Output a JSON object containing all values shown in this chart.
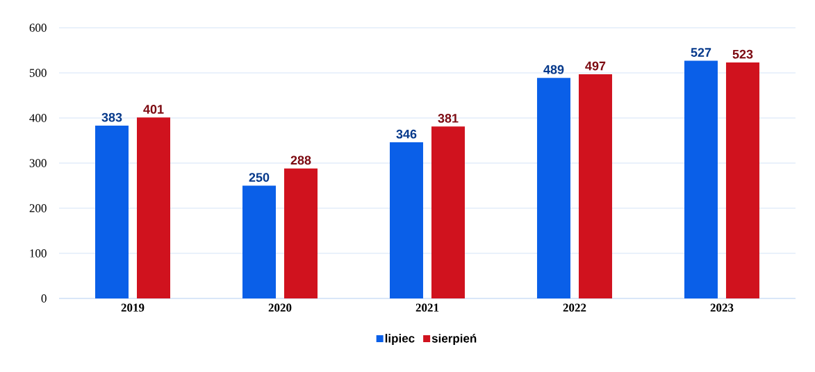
{
  "chart_data": {
    "type": "bar",
    "categories": [
      "2019",
      "2020",
      "2021",
      "2022",
      "2023"
    ],
    "series": [
      {
        "name": "lipiec",
        "color": "#0a5fe8",
        "values": [
          383,
          250,
          346,
          489,
          527
        ]
      },
      {
        "name": "sierpień",
        "color": "#d0121e",
        "values": [
          401,
          288,
          381,
          497,
          523
        ]
      }
    ],
    "ylim": [
      0,
      600
    ],
    "yticks": [
      0,
      100,
      200,
      300,
      400,
      500,
      600
    ],
    "grid": "y",
    "data_labels": true,
    "legend": "bottom"
  }
}
